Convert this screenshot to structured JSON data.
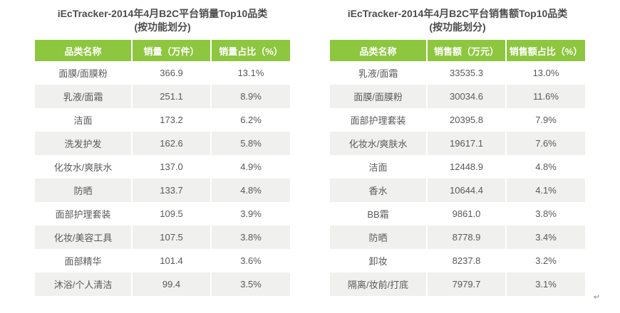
{
  "colors": {
    "header_green": "#8dc63f",
    "row_alt_gray": "#f0f0ef",
    "title_text": "#4d4d4d",
    "body_text": "#595959"
  },
  "footer_mark": "↵",
  "tables": [
    {
      "title_line1": "iEcTracker-2014年4月B2C平台销量Top10品类",
      "title_line2": "(按功能划分)",
      "columns": [
        "品类名称",
        "销量（万件）",
        "销量占比（%）"
      ],
      "rows": [
        [
          "面膜/面膜粉",
          "366.9",
          "13.1%"
        ],
        [
          "乳液/面霜",
          "251.1",
          "8.9%"
        ],
        [
          "洁面",
          "173.2",
          "6.2%"
        ],
        [
          "洗发护发",
          "162.6",
          "5.8%"
        ],
        [
          "化妆水/爽肤水",
          "137.0",
          "4.9%"
        ],
        [
          "防晒",
          "133.7",
          "4.8%"
        ],
        [
          "面部护理套装",
          "109.5",
          "3.9%"
        ],
        [
          "化妆/美容工具",
          "107.5",
          "3.8%"
        ],
        [
          "面部精华",
          "101.4",
          "3.6%"
        ],
        [
          "沐浴/个人清洁",
          "99.4",
          "3.5%"
        ]
      ]
    },
    {
      "title_line1": "iEcTracker-2014年4月B2C平台销售额Top10品类",
      "title_line2": "(按功能划分)",
      "columns": [
        "品类名称",
        "销售额（万元）",
        "销售额占比（%）"
      ],
      "rows": [
        [
          "乳液/面霜",
          "33535.3",
          "13.0%"
        ],
        [
          "面膜/面膜粉",
          "30034.6",
          "11.6%"
        ],
        [
          "面部护理套装",
          "20395.8",
          "7.9%"
        ],
        [
          "化妆水/爽肤水",
          "19617.1",
          "7.6%"
        ],
        [
          "洁面",
          "12448.9",
          "4.8%"
        ],
        [
          "香水",
          "10644.4",
          "4.1%"
        ],
        [
          "BB霜",
          "9861.0",
          "3.8%"
        ],
        [
          "防晒",
          "8778.9",
          "3.4%"
        ],
        [
          "卸妆",
          "8237.8",
          "3.2%"
        ],
        [
          "隔离/妆前/打底",
          "7979.7",
          "3.1%"
        ]
      ]
    }
  ],
  "chart_data": [
    {
      "type": "table",
      "title": "iEcTracker-2014年4月B2C平台销量Top10品类（按功能划分）",
      "columns": [
        "品类名称",
        "销量（万件）",
        "销量占比（%）"
      ],
      "categories": [
        "面膜/面膜粉",
        "乳液/面霜",
        "洁面",
        "洗发护发",
        "化妆水/爽肤水",
        "防晒",
        "面部护理套装",
        "化妆/美容工具",
        "面部精华",
        "沐浴/个人清洁"
      ],
      "series": [
        {
          "name": "销量（万件）",
          "values": [
            366.9,
            251.1,
            173.2,
            162.6,
            137.0,
            133.7,
            109.5,
            107.5,
            101.4,
            99.4
          ]
        },
        {
          "name": "销量占比（%）",
          "values": [
            13.1,
            8.9,
            6.2,
            5.8,
            4.9,
            4.8,
            3.9,
            3.8,
            3.6,
            3.5
          ]
        }
      ]
    },
    {
      "type": "table",
      "title": "iEcTracker-2014年4月B2C平台销售额Top10品类（按功能划分）",
      "columns": [
        "品类名称",
        "销售额（万元）",
        "销售额占比（%）"
      ],
      "categories": [
        "乳液/面霜",
        "面膜/面膜粉",
        "面部护理套装",
        "化妆水/爽肤水",
        "洁面",
        "香水",
        "BB霜",
        "防晒",
        "卸妆",
        "隔离/妆前/打底"
      ],
      "series": [
        {
          "name": "销售额（万元）",
          "values": [
            33535.3,
            30034.6,
            20395.8,
            19617.1,
            12448.9,
            10644.4,
            9861.0,
            8778.9,
            8237.8,
            7979.7
          ]
        },
        {
          "name": "销售额占比（%）",
          "values": [
            13.0,
            11.6,
            7.9,
            7.6,
            4.8,
            4.1,
            3.8,
            3.4,
            3.2,
            3.1
          ]
        }
      ]
    }
  ]
}
